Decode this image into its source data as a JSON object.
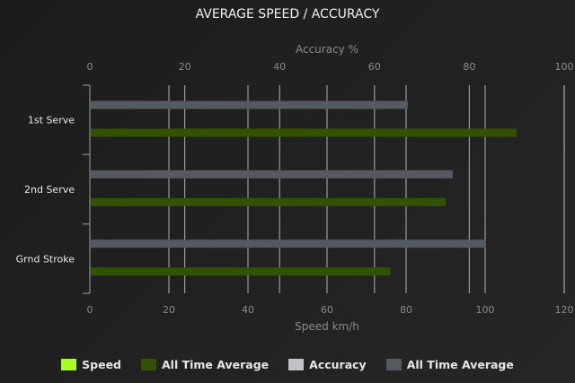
{
  "chart_data": {
    "type": "bar",
    "orientation": "horizontal",
    "title": "AVERAGE SPEED / ACCURACY",
    "categories": [
      "1st Serve",
      "2nd Serve",
      "Grnd Stroke"
    ],
    "x_top": {
      "label": "Accuracy %",
      "range": [
        0,
        100
      ],
      "ticks": [
        0,
        20,
        40,
        60,
        80,
        100
      ]
    },
    "x_bottom": {
      "label": "Speed km/h",
      "range": [
        0,
        120
      ],
      "ticks": [
        0,
        20,
        40,
        60,
        80,
        100,
        120
      ]
    },
    "grid": true,
    "legend_position": "bottom",
    "series": [
      {
        "name": "Speed",
        "axis": "speed",
        "color": "#aaff22",
        "values": [
          null,
          null,
          null
        ]
      },
      {
        "name": "All Time Average",
        "axis": "speed",
        "color": "#335200",
        "values": [
          108,
          90,
          76
        ]
      },
      {
        "name": "Accuracy",
        "axis": "accuracy",
        "color": "#c0c4c8",
        "values": [
          null,
          null,
          null
        ]
      },
      {
        "name": "All Time Average",
        "axis": "accuracy",
        "color": "#555a61",
        "values": [
          67,
          76.5,
          83.5
        ]
      }
    ]
  }
}
